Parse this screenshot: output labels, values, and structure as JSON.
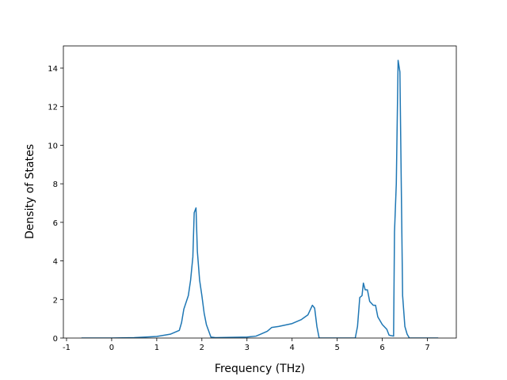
{
  "chart_data": {
    "type": "line",
    "xlabel": "Frequency (THz)",
    "ylabel": "Density of States",
    "x": [
      -0.67,
      0,
      0.5,
      1.0,
      1.3,
      1.5,
      1.55,
      1.6,
      1.7,
      1.75,
      1.8,
      1.83,
      1.87,
      1.9,
      1.95,
      2.0,
      2.05,
      2.1,
      2.2,
      2.3,
      3.0,
      3.2,
      3.3,
      3.45,
      3.55,
      3.7,
      4.0,
      4.2,
      4.35,
      4.45,
      4.5,
      4.55,
      4.6,
      5.0,
      5.4,
      5.45,
      5.5,
      5.55,
      5.58,
      5.62,
      5.67,
      5.72,
      5.8,
      5.85,
      5.9,
      6.0,
      6.1,
      6.15,
      6.25,
      6.27,
      6.31,
      6.35,
      6.39,
      6.45,
      6.5,
      6.55,
      6.6,
      7.24
    ],
    "series": [
      {
        "color": "#1f77b4",
        "values": [
          0,
          0,
          0.02,
          0.08,
          0.2,
          0.4,
          0.8,
          1.5,
          2.2,
          3.0,
          4.2,
          6.5,
          6.75,
          4.5,
          3.0,
          2.2,
          1.3,
          0.7,
          0.05,
          0.02,
          0.05,
          0.1,
          0.2,
          0.35,
          0.55,
          0.6,
          0.75,
          0.95,
          1.2,
          1.7,
          1.55,
          0.6,
          0,
          0,
          0,
          0.6,
          2.1,
          2.2,
          2.85,
          2.5,
          2.5,
          1.9,
          1.7,
          1.7,
          1.1,
          0.7,
          0.45,
          0.15,
          0.1,
          5.5,
          8,
          14.4,
          13.8,
          2.2,
          0.6,
          0.2,
          0,
          0
        ]
      }
    ],
    "xlim": [
      -1.07,
      7.64
    ],
    "ylim": [
      0,
      15.15
    ],
    "xticks": [
      -1,
      0,
      1,
      2,
      3,
      4,
      5,
      6,
      7
    ],
    "yticks": [
      0,
      2,
      4,
      6,
      8,
      10,
      12,
      14
    ]
  }
}
